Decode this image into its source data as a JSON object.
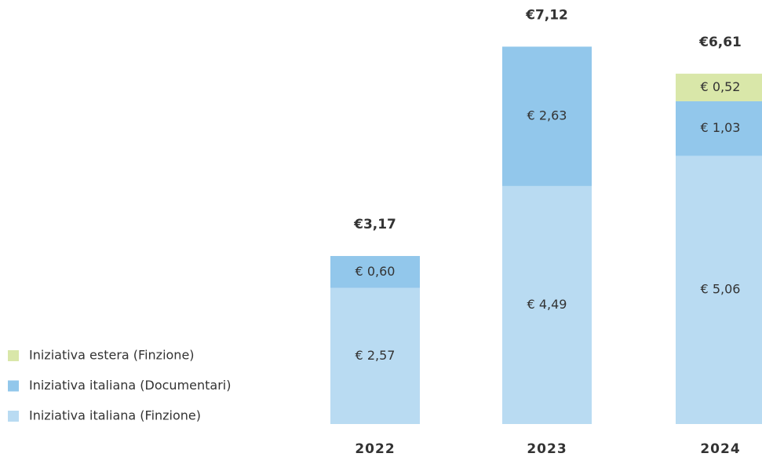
{
  "chart_data": {
    "type": "stacked_bar",
    "categories": [
      "2022",
      "2023",
      "2024"
    ],
    "series": [
      {
        "name": "Iniziativa italiana (Finzione)",
        "color": "#b9dbf2",
        "values": [
          2.57,
          4.49,
          5.06
        ],
        "value_labels": [
          "€ 2,57",
          "€ 4,49",
          "€ 5,06"
        ]
      },
      {
        "name": "Iniziativa italiana (Documentari)",
        "color": "#92c7eb",
        "values": [
          0.6,
          2.63,
          1.03
        ],
        "value_labels": [
          "€ 0,60",
          "€ 2,63",
          "€ 1,03"
        ]
      },
      {
        "name": "Iniziativa estera (Finzione)",
        "color": "#d9e7a9",
        "values": [
          null,
          null,
          0.52
        ],
        "value_labels": [
          null,
          null,
          "€ 0,52"
        ]
      }
    ],
    "totals": [
      3.17,
      7.12,
      6.61
    ],
    "total_labels": [
      "€3,17",
      "€7,12",
      "€6,61"
    ]
  }
}
